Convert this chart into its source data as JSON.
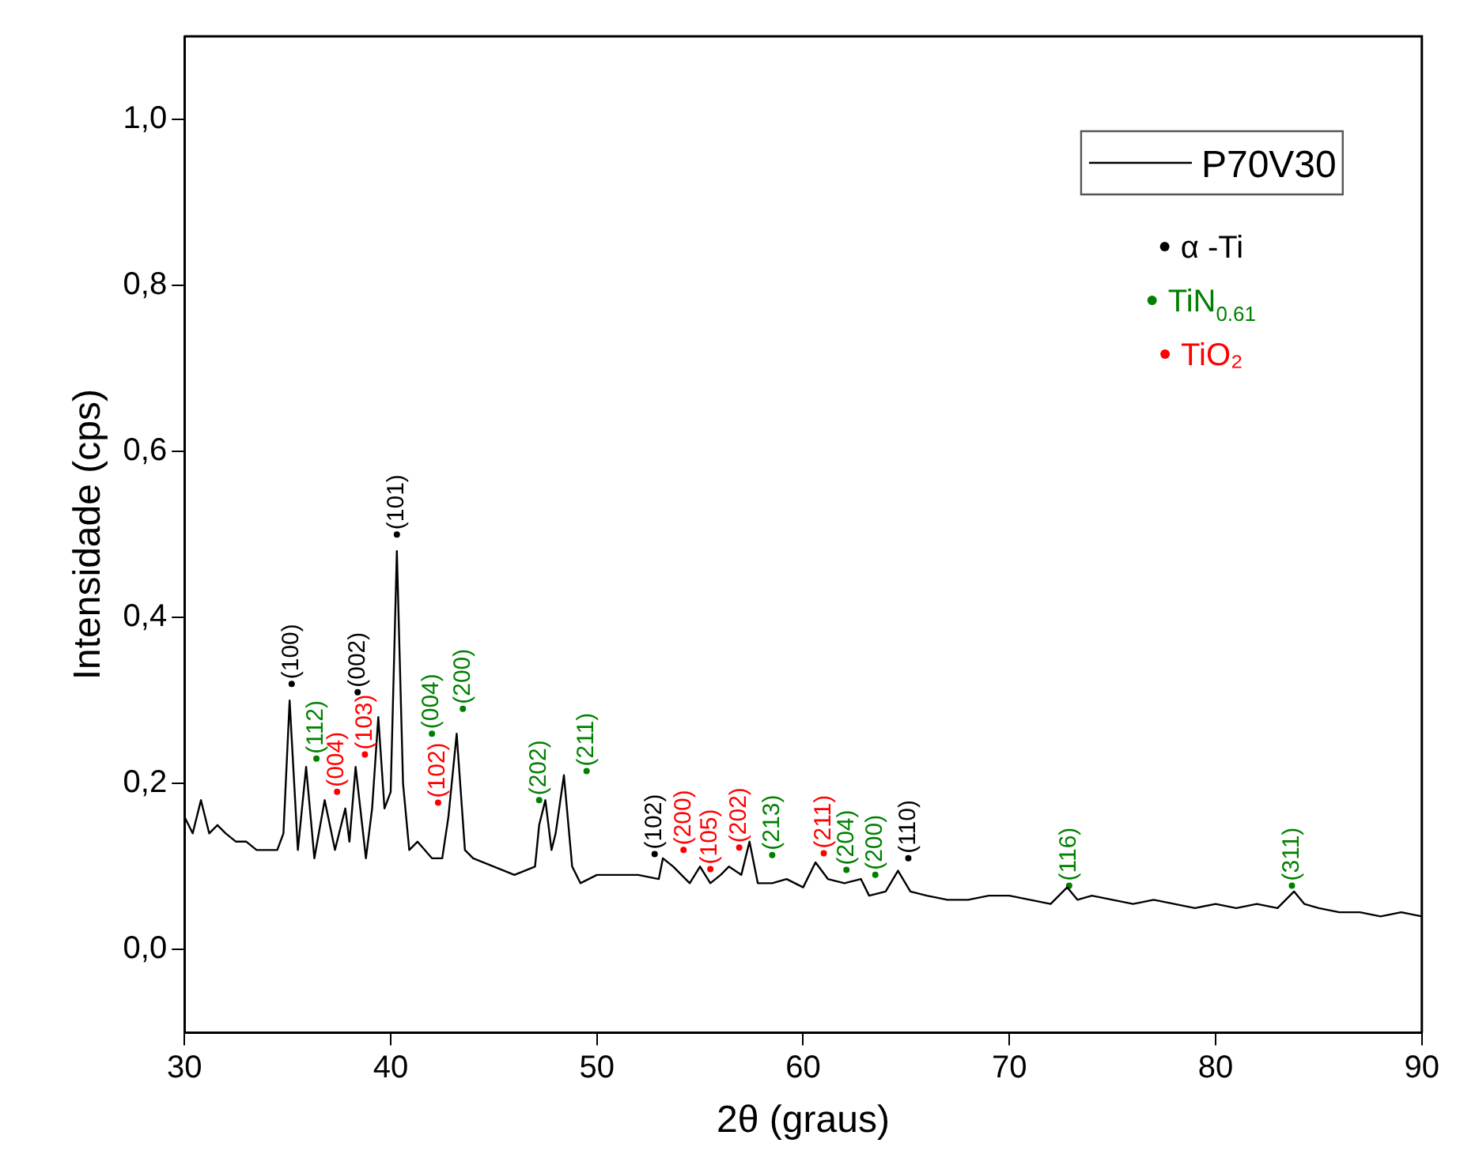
{
  "chart_data": {
    "type": "line",
    "xlabel": "2θ (graus)",
    "ylabel": "Intensidade (cps)",
    "xlim": [
      30,
      90
    ],
    "xticks": [
      30,
      40,
      50,
      60,
      70,
      80,
      90
    ],
    "ylim": [
      -0.1,
      1.1
    ],
    "yticks": [
      {
        "value": 0,
        "label": "0,0"
      },
      {
        "value": 0.2,
        "label": "0,2"
      },
      {
        "value": 0.4,
        "label": "0,4"
      },
      {
        "value": 0.6,
        "label": "0,6"
      },
      {
        "value": 0.8,
        "label": "0,8"
      },
      {
        "value": 1.0,
        "label": "1,0"
      }
    ],
    "grid": false,
    "legend": "top right",
    "annotations": [
      {
        "text": "(100)",
        "x": 35.2,
        "y": 0.32
      },
      {
        "text": "(002)",
        "x": 38.4,
        "y": 0.31
      },
      {
        "text": "(101)",
        "x": 40.3,
        "y": 0.5
      },
      {
        "text": "(102)",
        "x": 52.8,
        "y": 0.115
      },
      {
        "text": "(110)",
        "x": 65.1,
        "y": 0.11
      },
      {
        "text": "(112)",
        "x": 36.4,
        "y": 0.23
      },
      {
        "text": "(004)",
        "x": 42.0,
        "y": 0.26
      },
      {
        "text": "(200)",
        "x": 43.5,
        "y": 0.29
      },
      {
        "text": "(202)",
        "x": 47.2,
        "y": 0.18
      },
      {
        "text": "(211)",
        "x": 49.5,
        "y": 0.215
      },
      {
        "text": "(213)",
        "x": 58.5,
        "y": 0.114
      },
      {
        "text": "(204)",
        "x": 62.1,
        "y": 0.096
      },
      {
        "text": "(200)",
        "x": 63.5,
        "y": 0.09
      },
      {
        "text": "(116)",
        "x": 72.9,
        "y": 0.077
      },
      {
        "text": "(311)",
        "x": 83.7,
        "y": 0.077
      },
      {
        "text": "(004)",
        "x": 37.4,
        "y": 0.19
      },
      {
        "text": "(103)",
        "x": 38.75,
        "y": 0.235
      },
      {
        "text": "(102)",
        "x": 42.3,
        "y": 0.177
      },
      {
        "text": "(200)",
        "x": 54.2,
        "y": 0.12
      },
      {
        "text": "(105)",
        "x": 55.5,
        "y": 0.097
      },
      {
        "text": "(202)",
        "x": 56.9,
        "y": 0.123
      },
      {
        "text": "(211)",
        "x": 61.0,
        "y": 0.116
      }
    ],
    "series": [
      {
        "name": "P70V30",
        "color": "#000000",
        "x": [
          30,
          30.4,
          30.8,
          31.2,
          31.6,
          32,
          32.5,
          33,
          33.5,
          34,
          34.5,
          34.8,
          35.1,
          35.5,
          35.9,
          36.3,
          36.8,
          37.3,
          37.8,
          38.0,
          38.3,
          38.8,
          39.1,
          39.4,
          39.7,
          40.0,
          40.3,
          40.6,
          40.9,
          41.3,
          42,
          42.5,
          42.8,
          43.2,
          43.6,
          44,
          45,
          46,
          47,
          47.2,
          47.5,
          47.8,
          48.0,
          48.4,
          48.8,
          49.2,
          50,
          51,
          52,
          53,
          53.2,
          53.7,
          54.5,
          55,
          55.5,
          56,
          56.4,
          57,
          57.4,
          57.8,
          58.5,
          59.2,
          60,
          60.6,
          61.2,
          62,
          62.8,
          63.2,
          64,
          64.6,
          65.2,
          66,
          67,
          68,
          69,
          70,
          71,
          72,
          72.8,
          73.3,
          74,
          75,
          76,
          77,
          78,
          79,
          80,
          81,
          82,
          83,
          83.8,
          84.3,
          85,
          86,
          87,
          88,
          89,
          90
        ],
        "values": [
          0.16,
          0.14,
          0.18,
          0.14,
          0.15,
          0.14,
          0.13,
          0.13,
          0.12,
          0.12,
          0.12,
          0.14,
          0.3,
          0.12,
          0.22,
          0.11,
          0.18,
          0.12,
          0.17,
          0.13,
          0.22,
          0.11,
          0.17,
          0.28,
          0.17,
          0.19,
          0.48,
          0.2,
          0.12,
          0.13,
          0.11,
          0.11,
          0.16,
          0.26,
          0.12,
          0.11,
          0.1,
          0.09,
          0.1,
          0.15,
          0.18,
          0.12,
          0.14,
          0.21,
          0.1,
          0.08,
          0.09,
          0.09,
          0.09,
          0.085,
          0.11,
          0.1,
          0.08,
          0.1,
          0.08,
          0.09,
          0.1,
          0.09,
          0.13,
          0.08,
          0.08,
          0.085,
          0.075,
          0.105,
          0.085,
          0.08,
          0.085,
          0.065,
          0.07,
          0.095,
          0.07,
          0.065,
          0.06,
          0.06,
          0.065,
          0.065,
          0.06,
          0.055,
          0.075,
          0.06,
          0.065,
          0.06,
          0.055,
          0.06,
          0.055,
          0.05,
          0.055,
          0.05,
          0.055,
          0.05,
          0.07,
          0.055,
          0.05,
          0.045,
          0.045,
          0.04,
          0.045,
          0.04
        ]
      },
      {
        "name": "α -Ti",
        "type": "scatter",
        "color": "#000000",
        "x": [
          35.2,
          38.4,
          40.3,
          52.8,
          65.1
        ],
        "values": [
          0.32,
          0.31,
          0.5,
          0.115,
          0.11
        ]
      },
      {
        "name": "TiN$_{0.61}$",
        "type": "scatter",
        "color": "#008000",
        "x": [
          36.4,
          42.0,
          43.5,
          47.2,
          49.5,
          58.5,
          62.1,
          63.5,
          72.9,
          83.7
        ],
        "values": [
          0.23,
          0.26,
          0.29,
          0.18,
          0.215,
          0.114,
          0.096,
          0.09,
          0.077,
          0.077
        ]
      },
      {
        "name": "TiO₂",
        "type": "scatter",
        "color": "#ff0000",
        "x": [
          37.4,
          38.75,
          42.3,
          54.2,
          55.5,
          56.9,
          61.0
        ],
        "values": [
          0.19,
          0.235,
          0.177,
          0.12,
          0.097,
          0.123,
          0.116
        ]
      }
    ]
  }
}
